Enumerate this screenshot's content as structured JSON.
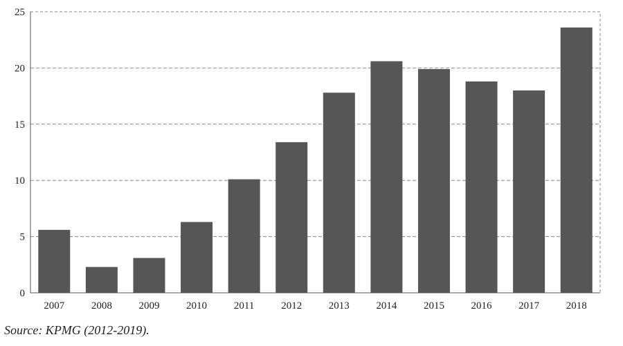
{
  "chart_data": {
    "type": "bar",
    "categories": [
      "2007",
      "2008",
      "2009",
      "2010",
      "2011",
      "2012",
      "2013",
      "2014",
      "2015",
      "2016",
      "2017",
      "2018"
    ],
    "values": [
      5.6,
      2.3,
      3.1,
      6.3,
      10.1,
      13.4,
      17.8,
      20.6,
      19.9,
      18.8,
      18.0,
      23.6
    ],
    "yticks": [
      "0",
      "5",
      "10",
      "15",
      "20",
      "25"
    ],
    "ylim": [
      0,
      25
    ],
    "grid": true,
    "grid_style": "dashed",
    "bar_color": "#565656",
    "title": "",
    "xlabel": "",
    "ylabel": ""
  },
  "source_note": "Source: KPMG (2012-2019)."
}
